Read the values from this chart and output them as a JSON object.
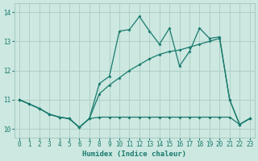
{
  "xlabel": "Humidex (Indice chaleur)",
  "bg_color": "#cce8e0",
  "line_color": "#1a7a6e",
  "grid_color": "#aaccc4",
  "x_ticks": [
    0,
    1,
    2,
    3,
    4,
    5,
    6,
    7,
    8,
    9,
    10,
    11,
    12,
    13,
    14,
    15,
    16,
    17,
    18,
    19,
    20,
    21,
    22,
    23
  ],
  "y_ticks": [
    10,
    11,
    12,
    13,
    14
  ],
  "ylim": [
    9.7,
    14.3
  ],
  "xlim": [
    -0.5,
    23.5
  ],
  "line1_x": [
    0,
    1,
    2,
    3,
    4,
    5,
    6,
    7,
    8,
    9,
    10,
    11,
    12,
    13,
    14,
    15,
    16,
    17,
    18,
    19,
    20,
    21,
    22,
    23
  ],
  "line1_y": [
    11.0,
    10.85,
    10.7,
    10.5,
    10.4,
    10.35,
    10.05,
    10.35,
    10.4,
    10.4,
    10.4,
    10.4,
    10.4,
    10.4,
    10.4,
    10.4,
    10.4,
    10.4,
    10.4,
    10.4,
    10.4,
    10.4,
    10.15,
    10.35
  ],
  "line2_x": [
    0,
    1,
    2,
    3,
    4,
    5,
    6,
    7,
    8,
    9,
    10,
    11,
    12,
    13,
    14,
    15,
    16,
    17,
    18,
    19,
    20,
    21,
    22,
    23
  ],
  "line2_y": [
    11.0,
    10.85,
    10.7,
    10.5,
    10.4,
    10.35,
    10.05,
    10.35,
    11.2,
    11.5,
    11.75,
    12.0,
    12.2,
    12.4,
    12.55,
    12.65,
    12.7,
    12.8,
    12.9,
    13.0,
    13.1,
    11.0,
    10.15,
    10.35
  ],
  "line3_x": [
    0,
    1,
    2,
    3,
    4,
    5,
    6,
    7,
    8,
    9,
    10,
    11,
    12,
    13,
    14,
    15,
    16,
    17,
    18,
    19,
    20,
    21,
    22,
    23
  ],
  "line3_y": [
    11.0,
    10.85,
    10.7,
    10.5,
    10.4,
    10.35,
    10.05,
    10.35,
    11.55,
    11.8,
    13.35,
    13.4,
    13.85,
    13.35,
    12.9,
    13.45,
    12.15,
    12.65,
    13.45,
    13.1,
    13.15,
    11.0,
    10.15,
    10.35
  ],
  "marker": "D",
  "marker_size": 2.0,
  "linewidth": 0.9
}
